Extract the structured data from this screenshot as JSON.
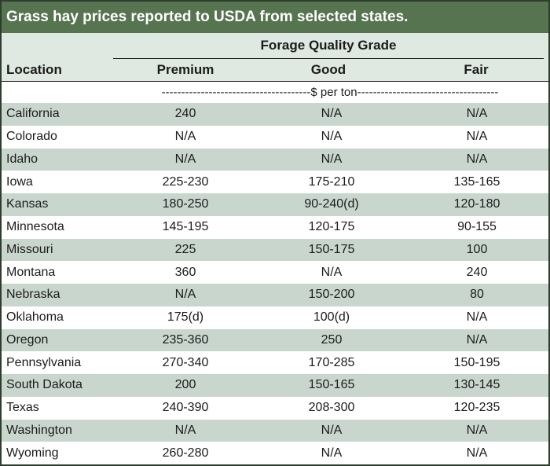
{
  "title": "Grass hay prices reported to USDA from selected states.",
  "group_header": "Forage Quality Grade",
  "columns": {
    "location": "Location",
    "premium": "Premium",
    "good": "Good",
    "fair": "Fair"
  },
  "units": "--------------------------------------$ per ton------------------------------------",
  "colors": {
    "title_bg": "#56744f",
    "header_bg": "#dfe8e1",
    "stripe": "#c9d6ce"
  },
  "rows": [
    {
      "location": "California",
      "premium": "240",
      "good": "N/A",
      "fair": "N/A"
    },
    {
      "location": "Colorado",
      "premium": "N/A",
      "good": "N/A",
      "fair": "N/A"
    },
    {
      "location": "Idaho",
      "premium": "N/A",
      "good": "N/A",
      "fair": "N/A"
    },
    {
      "location": "Iowa",
      "premium": "225-230",
      "good": "175-210",
      "fair": "135-165"
    },
    {
      "location": "Kansas",
      "premium": "180-250",
      "good": "90-240(d)",
      "fair": "120-180"
    },
    {
      "location": "Minnesota",
      "premium": "145-195",
      "good": "120-175",
      "fair": "90-155"
    },
    {
      "location": "Missouri",
      "premium": "225",
      "good": "150-175",
      "fair": "100"
    },
    {
      "location": "Montana",
      "premium": "360",
      "good": "N/A",
      "fair": "240"
    },
    {
      "location": "Nebraska",
      "premium": "N/A",
      "good": "150-200",
      "fair": "80"
    },
    {
      "location": "Oklahoma",
      "premium": "175(d)",
      "good": "100(d)",
      "fair": "N/A"
    },
    {
      "location": "Oregon",
      "premium": "235-360",
      "good": "250",
      "fair": "N/A"
    },
    {
      "location": "Pennsylvania",
      "premium": "270-340",
      "good": "170-285",
      "fair": "150-195"
    },
    {
      "location": "South Dakota",
      "premium": "200",
      "good": "150-165",
      "fair": "130-145"
    },
    {
      "location": "Texas",
      "premium": "240-390",
      "good": "208-300",
      "fair": "120-235"
    },
    {
      "location": "Washington",
      "premium": "N/A",
      "good": "N/A",
      "fair": "N/A"
    },
    {
      "location": "Wyoming",
      "premium": "260-280",
      "good": "N/A",
      "fair": "N/A"
    }
  ]
}
